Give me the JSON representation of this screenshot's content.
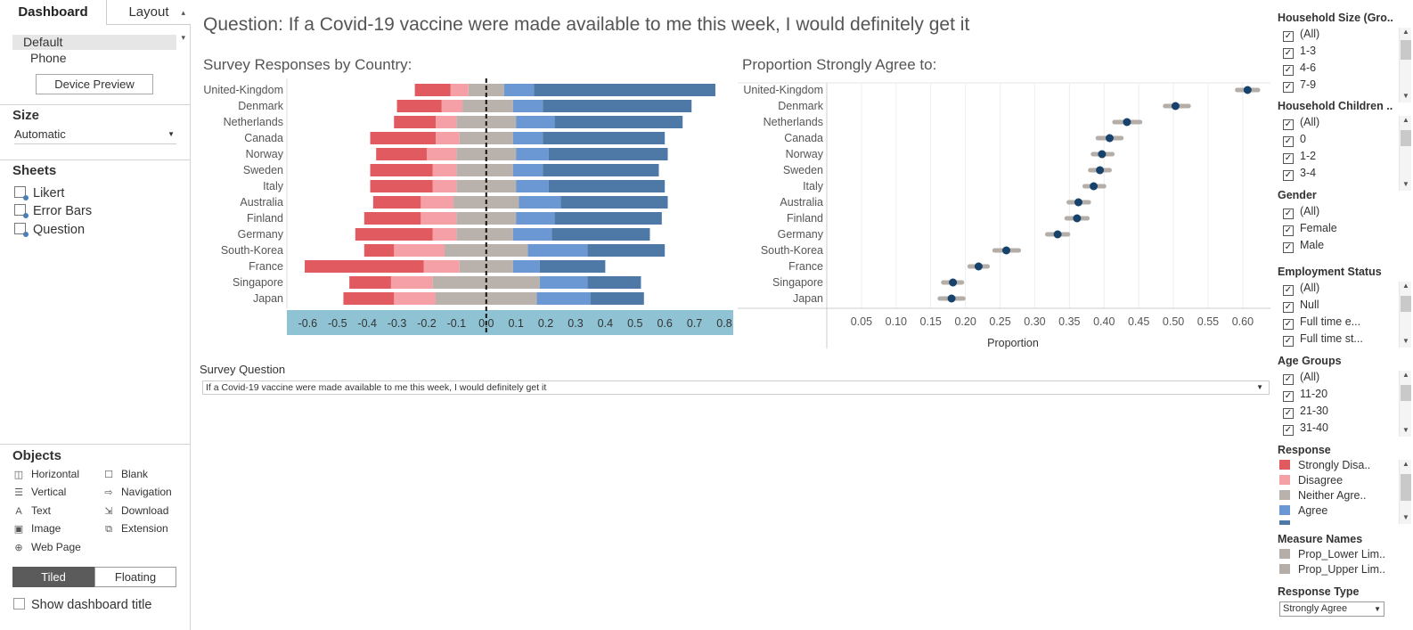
{
  "left_panel": {
    "tabs": {
      "dashboard": "Dashboard",
      "layout": "Layout"
    },
    "devices": [
      "Default",
      "Phone"
    ],
    "device_preview": "Device Preview",
    "size_title": "Size",
    "size_value": "Automatic",
    "sheets_title": "Sheets",
    "sheets": [
      "Likert",
      "Error Bars",
      "Question"
    ],
    "objects_title": "Objects",
    "objects": [
      {
        "label": "Horizontal",
        "icon": "horizontal-container-icon"
      },
      {
        "label": "Blank",
        "icon": "blank-icon"
      },
      {
        "label": "Vertical",
        "icon": "vertical-container-icon"
      },
      {
        "label": "Navigation",
        "icon": "navigation-icon"
      },
      {
        "label": "Text",
        "icon": "text-icon"
      },
      {
        "label": "Download",
        "icon": "download-icon"
      },
      {
        "label": "Image",
        "icon": "image-icon"
      },
      {
        "label": "Extension",
        "icon": "extension-icon"
      },
      {
        "label": "Web Page",
        "icon": "web-page-icon"
      }
    ],
    "tiled": "Tiled",
    "floating": "Floating",
    "show_title": "Show dashboard title"
  },
  "main": {
    "question_title": "Question: If a Covid-19 vaccine were made available to me this week, I would definitely get it",
    "survey_question_label": "Survey Question",
    "survey_question_value": "If a Covid-19 vaccine were made available to me this week, I would definitely get it"
  },
  "colors": {
    "strongly_disagree": "#e05a5f",
    "disagree": "#f4a0a6",
    "neither": "#b9b1ab",
    "agree": "#6b97d3",
    "strongly_agree": "#4e79a7",
    "axis_band": "#8fc3d3",
    "dot": "#17426b",
    "ci_bar": "#b5ada7"
  },
  "chart_data": [
    {
      "type": "bar",
      "title": "Survey Responses by Country:",
      "stacked": "diverging",
      "categories": [
        "United-Kingdom",
        "Denmark",
        "Netherlands",
        "Canada",
        "Norway",
        "Sweden",
        "Italy",
        "Australia",
        "Finland",
        "Germany",
        "South-Korea",
        "France",
        "Singapore",
        "Japan"
      ],
      "series": [
        {
          "name": "Strongly Disagree",
          "values": [
            -0.12,
            -0.15,
            -0.14,
            -0.22,
            -0.17,
            -0.21,
            -0.21,
            -0.16,
            -0.19,
            -0.26,
            -0.1,
            -0.4,
            -0.14,
            -0.17
          ]
        },
        {
          "name": "Disagree",
          "values": [
            -0.06,
            -0.07,
            -0.07,
            -0.08,
            -0.1,
            -0.08,
            -0.08,
            -0.11,
            -0.12,
            -0.08,
            -0.17,
            -0.12,
            -0.14,
            -0.14
          ]
        },
        {
          "name": "Neither Agree nor Disagree",
          "values": [
            -0.06,
            -0.08,
            -0.1,
            -0.09,
            -0.1,
            -0.1,
            -0.1,
            -0.11,
            -0.1,
            -0.1,
            -0.14,
            -0.09,
            -0.18,
            -0.17
          ]
        },
        {
          "name": "Neither Agree nor Disagree",
          "values": [
            0.06,
            0.09,
            0.1,
            0.09,
            0.1,
            0.09,
            0.1,
            0.11,
            0.1,
            0.09,
            0.14,
            0.09,
            0.18,
            0.17
          ]
        },
        {
          "name": "Agree",
          "values": [
            0.1,
            0.1,
            0.13,
            0.1,
            0.11,
            0.1,
            0.11,
            0.14,
            0.13,
            0.13,
            0.2,
            0.09,
            0.16,
            0.18
          ]
        },
        {
          "name": "Strongly Agree",
          "values": [
            0.61,
            0.5,
            0.43,
            0.41,
            0.4,
            0.39,
            0.39,
            0.36,
            0.36,
            0.33,
            0.26,
            0.22,
            0.18,
            0.18
          ]
        }
      ],
      "x_ticks": [
        "-0.6",
        "-0.5",
        "-0.4",
        "-0.3",
        "-0.2",
        "-0.1",
        "0.0",
        "0.1",
        "0.2",
        "0.3",
        "0.4",
        "0.5",
        "0.6",
        "0.7",
        "0.8"
      ],
      "xlim": [
        -0.67,
        0.83
      ]
    },
    {
      "type": "scatter",
      "title": "Proportion Strongly Agree to:",
      "xlabel": "Proportion",
      "categories": [
        "United-Kingdom",
        "Denmark",
        "Netherlands",
        "Canada",
        "Norway",
        "Sweden",
        "Italy",
        "Australia",
        "Finland",
        "Germany",
        "South-Korea",
        "France",
        "Singapore",
        "Japan"
      ],
      "values": [
        0.607,
        0.503,
        0.433,
        0.408,
        0.397,
        0.394,
        0.385,
        0.363,
        0.361,
        0.333,
        0.259,
        0.219,
        0.182,
        0.18
      ],
      "lower": [
        0.592,
        0.488,
        0.415,
        0.391,
        0.384,
        0.38,
        0.372,
        0.349,
        0.346,
        0.318,
        0.242,
        0.206,
        0.168,
        0.163
      ],
      "upper": [
        0.622,
        0.522,
        0.452,
        0.425,
        0.412,
        0.408,
        0.4,
        0.378,
        0.376,
        0.348,
        0.277,
        0.232,
        0.195,
        0.197
      ],
      "x_ticks": [
        "0.05",
        "0.10",
        "0.15",
        "0.20",
        "0.25",
        "0.30",
        "0.35",
        "0.40",
        "0.45",
        "0.50",
        "0.55",
        "0.60"
      ],
      "xlim": [
        0.0,
        0.64
      ]
    }
  ],
  "filters": [
    {
      "title": "Household Size (Gro..",
      "items": [
        "(All)",
        "1-3",
        "4-6",
        "7-9"
      ]
    },
    {
      "title": "Household Children ..",
      "items": [
        "(All)",
        "0",
        "1-2",
        "3-4"
      ]
    },
    {
      "title": "Gender",
      "items": [
        "(All)",
        "Female",
        "Male"
      ]
    },
    {
      "title": "Employment Status",
      "items": [
        "(All)",
        "Null",
        "Full time e...",
        "Full time st..."
      ]
    },
    {
      "title": "Age Groups",
      "items": [
        "(All)",
        "11-20",
        "21-30",
        "31-40"
      ]
    }
  ],
  "response_legend": {
    "title": "Response",
    "items": [
      {
        "label": "Strongly Disa..",
        "color": "#e05a5f"
      },
      {
        "label": "Disagree",
        "color": "#f4a0a6"
      },
      {
        "label": "Neither Agre..",
        "color": "#b9b1ab"
      },
      {
        "label": "Agree",
        "color": "#6b97d3"
      }
    ]
  },
  "measure_legend": {
    "title": "Measure Names",
    "items": [
      {
        "label": "Prop_Lower Lim..",
        "color": "#b5ada7"
      },
      {
        "label": "Prop_Upper Lim..",
        "color": "#b5ada7"
      }
    ]
  },
  "response_type": {
    "title": "Response Type",
    "value": "Strongly Agree"
  }
}
